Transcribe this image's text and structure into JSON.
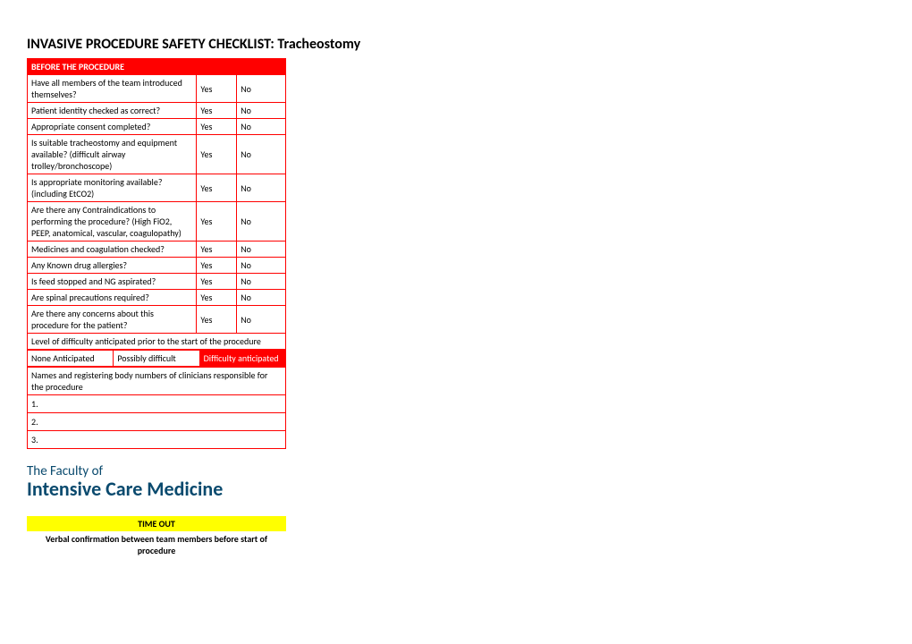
{
  "title": "INVASIVE PROCEDURE SAFETY CHECKLIST: Tracheostomy",
  "section1": {
    "header": "BEFORE THE PROCEDURE",
    "yes": "Yes",
    "no": "No",
    "q1": "Have all members of the team introduced themselves?",
    "q2": "Patient identity checked as correct?",
    "q3": "Appropriate consent completed?",
    "q4": "Is suitable tracheostomy and equipment available? (difficult airway trolley/bronchoscope)",
    "q5": "Is appropriate monitoring available? (including EtCO2)",
    "q6": "Are there any Contraindications to performing the procedure? (High FiO2, PEEP, anatomical, vascular, coagulopathy)",
    "q7": "Medicines and coagulation checked?",
    "q8": "Any Known drug allergies?",
    "q9": "Is feed stopped and NG aspirated?",
    "q10": "Are spinal precautions required?",
    "q11": "Are there any concerns about this procedure for the patient?",
    "difficulty_label": "Level of difficulty anticipated prior to the start of the procedure",
    "diff1": "None Anticipated",
    "diff2": "Possibly difficult",
    "diff3": "Difficulty anticipated",
    "names_label": "Names and registering body numbers of clinicians responsible for the procedure",
    "n1": "1.",
    "n2": "2.",
    "n3": "3."
  },
  "logo": {
    "line1": "The Faculty of",
    "line2": "Intensive Care Medicine"
  },
  "section2": {
    "header": "TIME OUT",
    "sub": "Verbal confirmation between team members before start of procedure"
  },
  "colors": {
    "red": "#ff0000",
    "yellow": "#ffff00",
    "teal": "#0a4a6e"
  }
}
